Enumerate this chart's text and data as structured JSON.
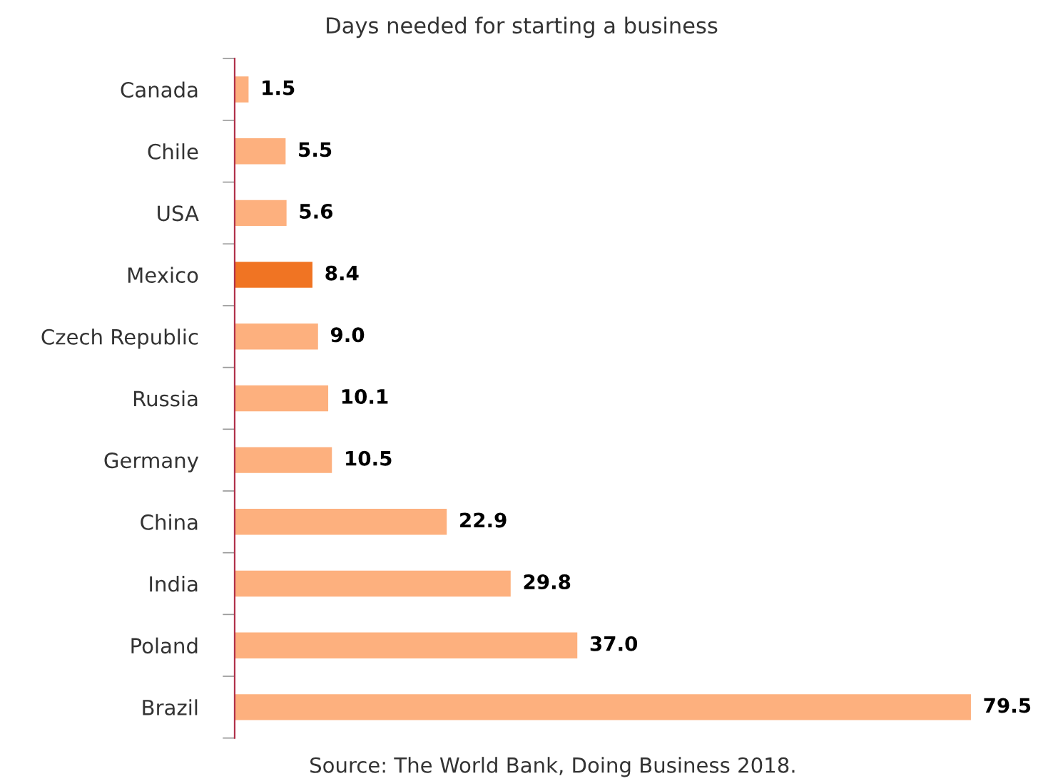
{
  "chart_data": {
    "type": "bar",
    "orientation": "horizontal",
    "title": "Days needed for starting a business",
    "categories": [
      "Canada",
      "Chile",
      "USA",
      "Mexico",
      "Czech Republic",
      "Russia",
      "Germany",
      "China",
      "India",
      "Poland",
      "Brazil"
    ],
    "values": [
      1.5,
      5.5,
      5.6,
      8.4,
      9.0,
      10.1,
      10.5,
      22.9,
      29.8,
      37.0,
      79.5
    ],
    "colors": [
      "#fdb07e",
      "#fdb07e",
      "#fdb07e",
      "#f07423",
      "#fdb07e",
      "#fdb07e",
      "#fdb07e",
      "#fdb07e",
      "#fdb07e",
      "#fdb07e",
      "#fdb07e"
    ],
    "value_labels": [
      "1.5",
      "5.5",
      "5.6",
      "8.4",
      "9.0",
      "10.1",
      "10.5",
      "22.9",
      "29.8",
      "37.0",
      "79.5"
    ],
    "grid": false,
    "legend": false,
    "tick_labels": "y",
    "annotations": [
      "Source: The World Bank, Doing Business 2018."
    ]
  }
}
